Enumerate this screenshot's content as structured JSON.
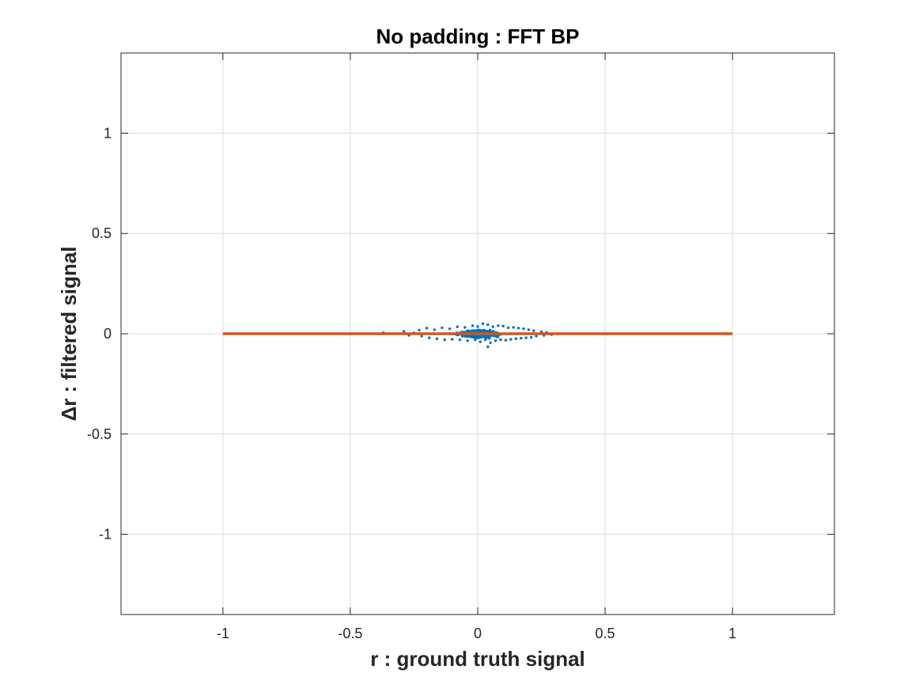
{
  "chart_data": {
    "type": "scatter",
    "title": "No padding : FFT BP",
    "xlabel": "r : ground truth signal",
    "ylabel": "Δr : filtered signal",
    "xlim": [
      -1.4,
      1.4
    ],
    "ylim": [
      -1.4,
      1.4
    ],
    "x_ticks": [
      -1,
      -0.5,
      0,
      0.5,
      1
    ],
    "x_tick_labels": [
      "-1",
      "-0.5",
      "0",
      "0.5",
      "1"
    ],
    "y_ticks": [
      -1,
      -0.5,
      0,
      0.5,
      1
    ],
    "y_tick_labels": [
      "-1",
      "-0.5",
      "0",
      "0.5",
      "1"
    ],
    "grid": true,
    "legend": "none",
    "series": [
      {
        "type": "scatter",
        "color": "#0072BD",
        "description_points": [
          [
            -0.37,
            0.005
          ],
          [
            -0.29,
            0.012
          ],
          [
            -0.27,
            -0.008
          ],
          [
            -0.25,
            0.004
          ],
          [
            -0.23,
            0.018
          ],
          [
            -0.22,
            -0.012
          ],
          [
            -0.2,
            0.028
          ],
          [
            -0.19,
            -0.02
          ],
          [
            -0.17,
            0.02
          ],
          [
            -0.16,
            -0.025
          ],
          [
            -0.14,
            0.03
          ],
          [
            -0.13,
            -0.03
          ],
          [
            -0.11,
            0.025
          ],
          [
            -0.1,
            -0.028
          ],
          [
            -0.08,
            0.035
          ],
          [
            -0.07,
            -0.03
          ],
          [
            -0.05,
            0.032
          ],
          [
            -0.04,
            -0.035
          ],
          [
            -0.02,
            0.04
          ],
          [
            -0.01,
            -0.03
          ],
          [
            0.0,
            0.036
          ],
          [
            0.01,
            -0.04
          ],
          [
            0.02,
            0.05
          ],
          [
            0.03,
            -0.03
          ],
          [
            0.04,
            0.045
          ],
          [
            0.05,
            -0.045
          ],
          [
            0.06,
            0.035
          ],
          [
            0.07,
            -0.035
          ],
          [
            0.08,
            0.04
          ],
          [
            0.09,
            -0.03
          ],
          [
            0.1,
            0.038
          ],
          [
            0.11,
            -0.032
          ],
          [
            0.12,
            0.03
          ],
          [
            0.13,
            -0.028
          ],
          [
            0.14,
            0.032
          ],
          [
            0.15,
            -0.025
          ],
          [
            0.16,
            0.028
          ],
          [
            0.17,
            -0.022
          ],
          [
            0.18,
            0.025
          ],
          [
            0.19,
            -0.02
          ],
          [
            0.2,
            0.02
          ],
          [
            0.21,
            -0.018
          ],
          [
            0.22,
            0.015
          ],
          [
            0.23,
            -0.012
          ],
          [
            0.25,
            0.01
          ],
          [
            0.26,
            -0.008
          ],
          [
            0.27,
            0.006
          ],
          [
            0.29,
            -0.004
          ],
          [
            0.04,
            -0.065
          ]
        ]
      },
      {
        "type": "line",
        "color": "#D95319",
        "x": [
          -1,
          1
        ],
        "y": [
          0,
          0
        ]
      }
    ]
  }
}
